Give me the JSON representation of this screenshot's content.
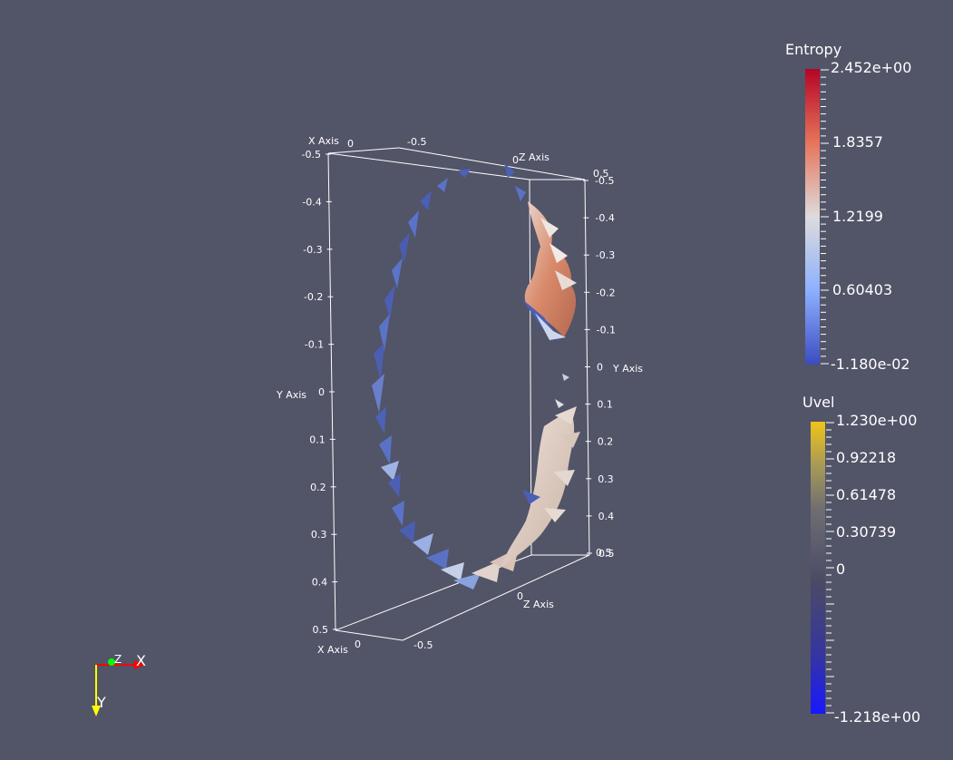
{
  "scene": {
    "background": "#525468",
    "axes": {
      "x_title": "X Axis",
      "y_title": "Y Axis",
      "z_title": "Z Axis",
      "left_y_ticks": [
        "-0.5",
        "-0.4",
        "-0.3",
        "-0.2",
        "-0.1",
        "0",
        "0.1",
        "0.2",
        "0.3",
        "0.4",
        "0.5"
      ],
      "right_y_ticks": [
        "-0.5",
        "-0.4",
        "-0.3",
        "-0.2",
        "-0.1",
        "0",
        "0.1",
        "0.2",
        "0.3",
        "0.4",
        "0.5"
      ],
      "top_x_ticks": [
        "0",
        "-0.5"
      ],
      "bottom_x_ticks": [
        "0",
        "-0.5"
      ],
      "top_z_ticks": [
        "0",
        "0.5"
      ],
      "bottom_z_ticks": [
        "0",
        "0.5"
      ]
    }
  },
  "legends": {
    "entropy": {
      "title": "Entropy",
      "labels": [
        "2.452e+00",
        "1.8357",
        "1.2199",
        "0.60403",
        "-1.180e-02"
      ],
      "colors": [
        "#b40426",
        "#f08b6e",
        "#dddcdc",
        "#8db0fe",
        "#3b4cc0"
      ]
    },
    "uvel": {
      "title": "Uvel",
      "labels": [
        "1.230e+00",
        "0.92218",
        "0.61478",
        "0.30739",
        "0",
        "-1.218e+00"
      ],
      "colors": [
        "#f0c419",
        "#8c8c80",
        "#4d4d66",
        "#1a1aff"
      ]
    }
  },
  "orientation": {
    "x": "X",
    "y": "Y",
    "z": "Z",
    "x_color": "#ff0000",
    "y_color": "#ffff00",
    "z_color": "#00ff00"
  }
}
